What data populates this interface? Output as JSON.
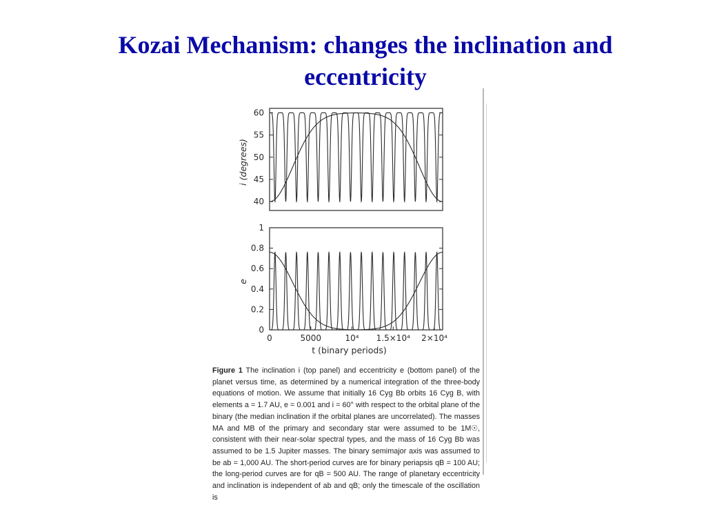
{
  "slide": {
    "title_line1": "Kozai Mechanism: changes the inclination and",
    "title_line2": "eccentricity",
    "title_color": "#0a0aa8"
  },
  "figure": {
    "caption_label": "Figure 1",
    "caption_text": "The inclination i (top panel) and eccentricity e (bottom panel) of the planet versus time, as determined by a numerical integration of the three-body equations of motion. We assume that initially 16 Cyg Bb orbits 16 Cyg B, with elements a = 1.7 AU, e = 0.001 and i = 60° with respect to the orbital plane of the binary (the median inclination if the orbital planes are uncorrelated). The masses MA and MB of the primary and secondary star were assumed to be 1M☉, consistent with their near-solar spectral types, and the mass of 16 Cyg Bb was assumed to be 1.5 Jupiter masses. The binary semimajor axis was assumed to be ab = 1,000 AU. The short-period curves are for binary periapsis qB = 100 AU; the long-period curves are for qB = 500 AU. The range of planetary eccentricity and inclination is independent of ab and qB; only the timescale of the oscillation is"
  },
  "chart_data": [
    {
      "type": "line",
      "panel": "top",
      "ylabel": "i (degrees)",
      "ylim": [
        38,
        61
      ],
      "yticks": [
        40,
        45,
        50,
        55,
        60
      ],
      "xlim": [
        0,
        21000
      ],
      "series": [
        {
          "period": 1310,
          "max": 60,
          "min": 40,
          "phase": 0,
          "profile": "sharp-dip"
        },
        {
          "period": 21000,
          "max": 60,
          "min": 40,
          "phase": 10500,
          "profile": "broad-dip"
        }
      ]
    },
    {
      "type": "line",
      "panel": "bottom",
      "ylabel": "e",
      "xlabel": "t (binary periods)",
      "ylim": [
        0,
        1
      ],
      "yticks": [
        0,
        0.2,
        0.4,
        0.6,
        0.8,
        1
      ],
      "ytick_labels": [
        "0",
        "0.2",
        "0.4",
        "0.6",
        "0.8",
        "1"
      ],
      "xlim": [
        0,
        21000
      ],
      "xticks": [
        0,
        5000,
        10000,
        15000,
        20000
      ],
      "xtick_labels": [
        "0",
        "5000",
        "10⁴",
        "1.5×10⁴",
        "2×10⁴"
      ],
      "series": [
        {
          "period": 1310,
          "max": 0.76,
          "min": 0,
          "phase": 0,
          "profile": "sharp-peak"
        },
        {
          "period": 21000,
          "max": 0.76,
          "min": 0,
          "phase": 10500,
          "profile": "broad-peak"
        }
      ]
    }
  ]
}
